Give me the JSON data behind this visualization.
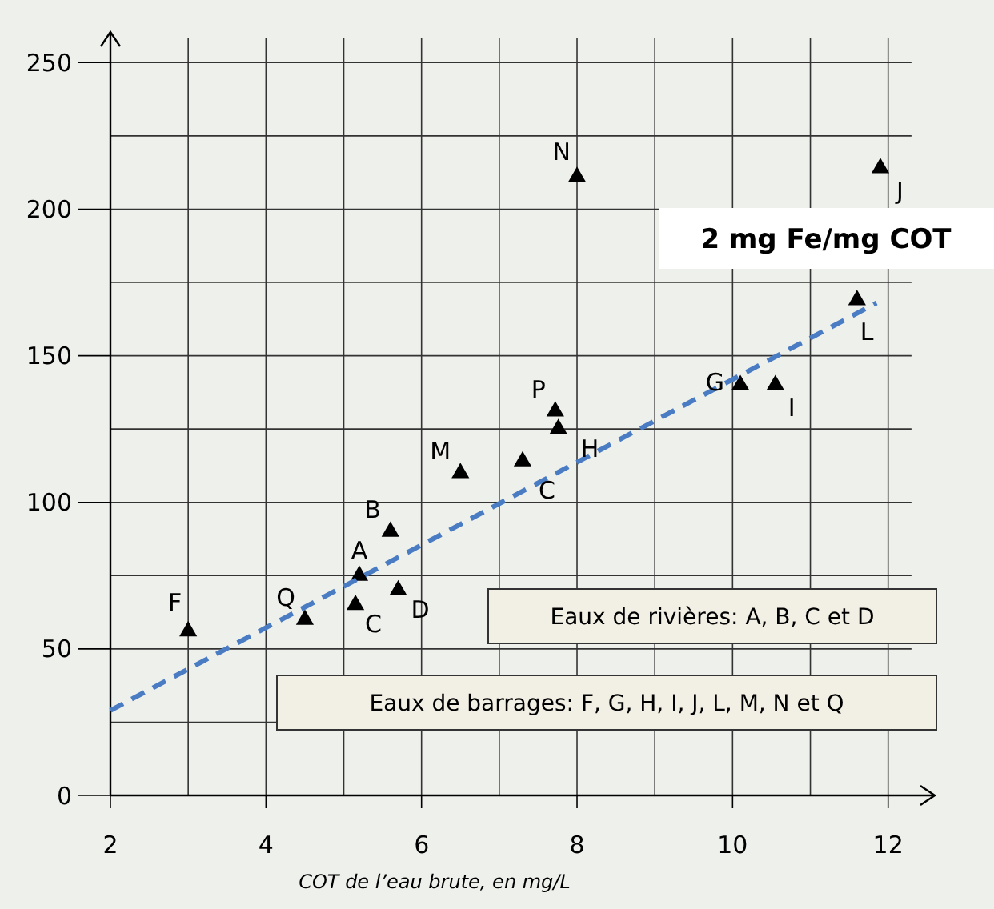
{
  "chart_data": {
    "type": "scatter",
    "xlabel": "COT de l’eau brute, en mg/L",
    "xlim": [
      2,
      12.6
    ],
    "ylim": [
      0,
      255
    ],
    "xticks": [
      2,
      {
        "value": 3,
        "label": null
      },
      4,
      {
        "value": 5,
        "label": null
      },
      6,
      {
        "value": 7,
        "label": null
      },
      8,
      {
        "value": 9,
        "label": null
      },
      10,
      {
        "value": 11,
        "label": null
      },
      12
    ],
    "yticks": [
      0,
      {
        "value": 25,
        "label": null
      },
      50,
      {
        "value": 75,
        "label": null
      },
      100,
      {
        "value": 125,
        "label": null
      },
      150,
      {
        "value": 175,
        "label": null
      },
      200,
      {
        "value": 225,
        "label": null
      },
      250
    ],
    "grid": true,
    "marker": "triangle",
    "series": [
      {
        "color": "#000000",
        "x": [
          8.0,
          11.9,
          11.6,
          10.1,
          10.55,
          7.72,
          7.76,
          6.5,
          7.3,
          5.6,
          5.2,
          5.15,
          5.7,
          4.5,
          3.0
        ],
        "values": [
          211,
          214,
          169,
          140,
          140,
          131,
          125,
          110,
          114,
          90,
          75,
          65,
          70,
          60,
          56
        ]
      },
      {
        "type": "line",
        "color": "#4a7cc4",
        "line_style": "dashed",
        "marker": "none",
        "x": [
          2,
          11.85
        ],
        "values": [
          29,
          168
        ]
      }
    ],
    "annotations": [
      {
        "text": "N",
        "x": 8.0,
        "y": 211
      },
      {
        "text": "J",
        "x": 11.9,
        "y": 214
      },
      {
        "text": "L",
        "x": 11.6,
        "y": 169
      },
      {
        "text": "G",
        "x": 10.1,
        "y": 140
      },
      {
        "text": "I",
        "x": 10.55,
        "y": 140
      },
      {
        "text": "P",
        "x": 7.72,
        "y": 131
      },
      {
        "text": "H",
        "x": 7.76,
        "y": 125
      },
      {
        "text": "M",
        "x": 6.5,
        "y": 110
      },
      {
        "text": "C",
        "x": 7.3,
        "y": 114
      },
      {
        "text": "B",
        "x": 5.6,
        "y": 90
      },
      {
        "text": "A",
        "x": 5.2,
        "y": 75
      },
      {
        "text": "C",
        "x": 5.15,
        "y": 65
      },
      {
        "text": "D",
        "x": 5.7,
        "y": 70
      },
      {
        "text": "Q",
        "x": 4.5,
        "y": 60
      },
      {
        "text": "F",
        "x": 3.0,
        "y": 56
      },
      "2 mg Fe/mg COT",
      "Eaux de rivières: A, B, C et D",
      "Eaux de barrages: F, G, H, I, J, L, M, N et Q"
    ]
  }
}
